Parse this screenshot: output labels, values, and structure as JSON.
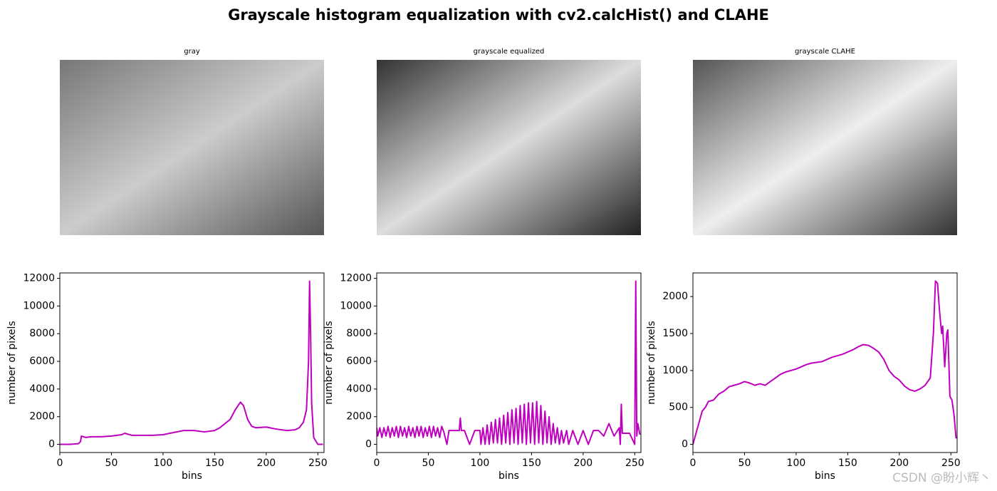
{
  "title": "Grayscale histogram equalization with cv2.calcHist() and CLAHE",
  "images": [
    {
      "title": "gray"
    },
    {
      "title": "grayscale equalized"
    },
    {
      "title": "grayscale CLAHE"
    }
  ],
  "watermark": "CSDN @盼小辉丶",
  "chart_data": [
    {
      "type": "line",
      "xlabel": "bins",
      "ylabel": "number of pixels",
      "xlim": [
        0,
        256
      ],
      "ylim": [
        -590,
        12390
      ],
      "xticks": [
        0,
        50,
        100,
        150,
        200,
        250
      ],
      "yticks": [
        0,
        2000,
        4000,
        6000,
        8000,
        10000,
        12000
      ],
      "color": "#bf00bf",
      "x": [
        0,
        10,
        18,
        20,
        21,
        25,
        30,
        40,
        50,
        60,
        63,
        70,
        80,
        90,
        100,
        110,
        120,
        130,
        140,
        150,
        155,
        160,
        165,
        170,
        175,
        178,
        182,
        186,
        190,
        200,
        210,
        220,
        228,
        232,
        236,
        239,
        241,
        242,
        243,
        244,
        246,
        250,
        255
      ],
      "values": [
        0,
        0,
        50,
        200,
        600,
        500,
        550,
        550,
        600,
        700,
        800,
        650,
        650,
        650,
        700,
        850,
        1000,
        1000,
        900,
        1000,
        1200,
        1500,
        1800,
        2500,
        3050,
        2800,
        1800,
        1300,
        1200,
        1250,
        1100,
        1000,
        1050,
        1200,
        1600,
        2500,
        6000,
        11800,
        8000,
        3000,
        500,
        0,
        0
      ]
    },
    {
      "type": "line",
      "xlabel": "bins",
      "ylabel": "number of pixels",
      "xlim": [
        0,
        256
      ],
      "ylim": [
        -590,
        12390
      ],
      "xticks": [
        0,
        50,
        100,
        150,
        200,
        250
      ],
      "yticks": [
        0,
        2000,
        4000,
        6000,
        8000,
        10000,
        12000
      ],
      "color": "#bf00bf",
      "x": [
        0,
        1,
        3,
        5,
        7,
        9,
        11,
        13,
        15,
        17,
        19,
        21,
        23,
        25,
        27,
        29,
        31,
        33,
        35,
        37,
        39,
        41,
        43,
        45,
        47,
        49,
        51,
        53,
        55,
        57,
        59,
        61,
        63,
        65,
        68,
        70,
        75,
        80,
        81,
        82,
        85,
        90,
        95,
        100,
        101,
        103,
        105,
        107,
        109,
        111,
        113,
        115,
        117,
        119,
        121,
        123,
        125,
        127,
        129,
        131,
        133,
        135,
        137,
        139,
        141,
        143,
        145,
        147,
        149,
        151,
        153,
        155,
        157,
        159,
        161,
        163,
        165,
        167,
        169,
        171,
        173,
        175,
        177,
        179,
        181,
        184,
        186,
        190,
        195,
        200,
        205,
        210,
        215,
        220,
        225,
        230,
        235,
        236,
        237,
        238,
        240,
        245,
        250,
        251,
        252,
        253,
        255
      ],
      "values": [
        1200,
        600,
        1200,
        500,
        1200,
        600,
        1300,
        500,
        1200,
        600,
        1300,
        500,
        1300,
        600,
        1200,
        500,
        1300,
        600,
        1200,
        500,
        1300,
        600,
        1300,
        500,
        1200,
        600,
        1300,
        500,
        1300,
        600,
        1200,
        500,
        1300,
        900,
        0,
        1000,
        1000,
        1000,
        1900,
        1000,
        1000,
        0,
        1000,
        1000,
        0,
        1200,
        0,
        1400,
        0,
        1600,
        100,
        1800,
        100,
        1900,
        0,
        2100,
        100,
        2300,
        0,
        2500,
        100,
        2600,
        0,
        2800,
        100,
        2900,
        0,
        3000,
        100,
        3000,
        0,
        3100,
        100,
        2800,
        0,
        2400,
        100,
        2000,
        0,
        1500,
        100,
        1200,
        0,
        1000,
        100,
        1000,
        0,
        1000,
        0,
        1000,
        0,
        1000,
        1000,
        600,
        1500,
        600,
        1200,
        0,
        2900,
        800,
        800,
        800,
        0,
        11800,
        600,
        1500,
        700
      ]
    },
    {
      "type": "line",
      "xlabel": "bins",
      "ylabel": "number of pixels",
      "xlim": [
        0,
        256
      ],
      "ylim": [
        -110,
        2320
      ],
      "xticks": [
        0,
        50,
        100,
        150,
        200,
        250
      ],
      "yticks": [
        0,
        500,
        1000,
        1500,
        2000
      ],
      "color": "#bf00bf",
      "x": [
        0,
        3,
        6,
        9,
        12,
        15,
        20,
        25,
        30,
        35,
        40,
        45,
        50,
        55,
        60,
        65,
        70,
        75,
        80,
        85,
        90,
        95,
        100,
        105,
        110,
        115,
        120,
        125,
        130,
        135,
        140,
        145,
        150,
        155,
        160,
        165,
        170,
        175,
        180,
        185,
        190,
        195,
        200,
        205,
        210,
        215,
        220,
        225,
        230,
        233,
        235,
        237,
        239,
        241,
        242,
        244,
        246,
        247,
        249,
        251,
        253,
        255
      ],
      "values": [
        0,
        150,
        300,
        450,
        500,
        580,
        600,
        680,
        720,
        780,
        800,
        820,
        850,
        830,
        800,
        820,
        800,
        850,
        900,
        950,
        980,
        1000,
        1020,
        1050,
        1080,
        1100,
        1110,
        1120,
        1150,
        1180,
        1200,
        1220,
        1250,
        1280,
        1320,
        1350,
        1340,
        1300,
        1250,
        1150,
        1000,
        920,
        870,
        790,
        740,
        720,
        750,
        800,
        900,
        1500,
        2210,
        2180,
        1800,
        1500,
        1600,
        1050,
        1500,
        1550,
        650,
        600,
        400,
        80
      ]
    }
  ]
}
